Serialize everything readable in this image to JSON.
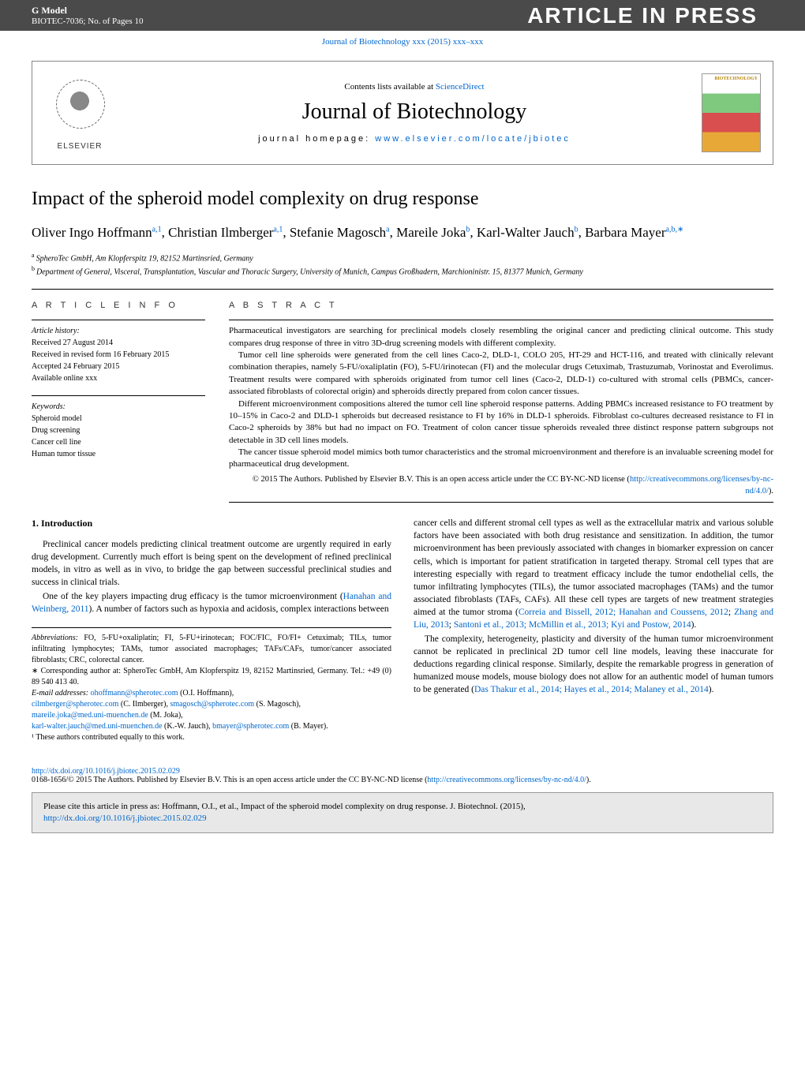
{
  "banner": {
    "gmodel": "G Model",
    "ref": "BIOTEC-7036;   No. of Pages 10",
    "press_label": "ARTICLE IN PRESS"
  },
  "top_doi": "Journal of Biotechnology xxx (2015) xxx–xxx",
  "journal_header": {
    "contents_prefix": "Contents lists available at ",
    "contents_link": "ScienceDirect",
    "journal_name": "Journal of Biotechnology",
    "homepage_prefix": "journal homepage: ",
    "homepage_link": "www.elsevier.com/locate/jbiotec",
    "elsevier": "ELSEVIER",
    "cover_label": "BIOTECHNOLOGY"
  },
  "article": {
    "title": "Impact of the spheroid model complexity on drug response",
    "authors_html": "Oliver Ingo Hoffmann",
    "authors": [
      {
        "name": "Oliver Ingo Hoffmann",
        "sup": "a,1"
      },
      {
        "name": "Christian Ilmberger",
        "sup": "a,1"
      },
      {
        "name": "Stefanie Magosch",
        "sup": "a"
      },
      {
        "name": "Mareile Joka",
        "sup": "b"
      },
      {
        "name": "Karl-Walter Jauch",
        "sup": "b"
      },
      {
        "name": "Barbara Mayer",
        "sup": "a,b,∗"
      }
    ],
    "affiliations": [
      {
        "sup": "a",
        "text": "SpheroTec GmbH, Am Klopferspitz 19, 82152 Martinsried, Germany"
      },
      {
        "sup": "b",
        "text": "Department of General, Visceral, Transplantation, Vascular and Thoracic Surgery, University of Munich, Campus Großhadern, Marchioninistr. 15, 81377 Munich, Germany"
      }
    ]
  },
  "info": {
    "heading": "A R T I C L E   I N F O",
    "history_label": "Article history:",
    "history": [
      "Received 27 August 2014",
      "Received in revised form 16 February 2015",
      "Accepted 24 February 2015",
      "Available online xxx"
    ],
    "keywords_label": "Keywords:",
    "keywords": [
      "Spheroid model",
      "Drug screening",
      "Cancer cell line",
      "Human tumor tissue"
    ]
  },
  "abstract": {
    "heading": "A B S T R A C T",
    "paragraphs": [
      "Pharmaceutical investigators are searching for preclinical models closely resembling the original cancer and predicting clinical outcome. This study compares drug response of three in vitro 3D-drug screening models with different complexity.",
      "Tumor cell line spheroids were generated from the cell lines Caco-2, DLD-1, COLO 205, HT-29 and HCT-116, and treated with clinically relevant combination therapies, namely 5-FU/oxaliplatin (FO), 5-FU/irinotecan (FI) and the molecular drugs Cetuximab, Trastuzumab, Vorinostat and Everolimus. Treatment results were compared with spheroids originated from tumor cell lines (Caco-2, DLD-1) co-cultured with stromal cells (PBMCs, cancer-associated fibroblasts of colorectal origin) and spheroids directly prepared from colon cancer tissues.",
      "Different microenvironment compositions altered the tumor cell line spheroid response patterns. Adding PBMCs increased resistance to FO treatment by 10–15% in Caco-2 and DLD-1 spheroids but decreased resistance to FI by 16% in DLD-1 spheroids. Fibroblast co-cultures decreased resistance to FI in Caco-2 spheroids by 38% but had no impact on FO. Treatment of colon cancer tissue spheroids revealed three distinct response pattern subgroups not detectable in 3D cell lines models.",
      "The cancer tissue spheroid model mimics both tumor characteristics and the stromal microenvironment and therefore is an invaluable screening model for pharmaceutical drug development."
    ],
    "copyright": "© 2015 The Authors. Published by Elsevier B.V. This is an open access article under the CC BY-NC-ND license (",
    "license_link": "http://creativecommons.org/licenses/by-nc-nd/4.0/",
    "copyright_suffix": ")."
  },
  "body": {
    "section1_heading": "1.  Introduction",
    "p1": "Preclinical cancer models predicting clinical treatment outcome are urgently required in early drug development. Currently much effort is being spent on the development of refined preclinical models, in vitro as well as in vivo, to bridge the gap between successful preclinical studies and success in clinical trials.",
    "p2_a": "One of the key players impacting drug efficacy is the tumor microenvironment (",
    "p2_link": "Hanahan and Weinberg, 2011",
    "p2_b": "). A number of factors such as hypoxia and acidosis, complex interactions between",
    "p3_a": "cancer cells and different stromal cell types as well as the extracellular matrix and various soluble factors have been associated with both drug resistance and sensitization. In addition, the tumor microenvironment has been previously associated with changes in biomarker expression on cancer cells, which is important for patient stratification in targeted therapy. Stromal cell types that are interesting especially with regard to treatment efficacy include the tumor endothelial cells, the tumor infiltrating lymphocytes (TILs), the tumor associated macrophages (TAMs) and the tumor associated fibroblasts (TAFs, CAFs). All these cell types are targets of new treatment strategies aimed at the tumor stroma (",
    "p3_link1": "Correia and Bissell, 2012; Hanahan and Coussens, 2012",
    "p3_mid1": "; ",
    "p3_link2": "Zhang and Liu, 2013",
    "p3_mid2": "; ",
    "p3_link3": "Santoni et al., 2013; McMillin et al., 2013; Kyi and Postow, 2014",
    "p3_b": ").",
    "p4_a": "The complexity, heterogeneity, plasticity and diversity of the human tumor microenvironment cannot be replicated in preclinical 2D tumor cell line models, leaving these inaccurate for deductions regarding clinical response. Similarly, despite the remarkable progress in generation of humanized mouse models, mouse biology does not allow for an authentic model of human tumors to be generated (",
    "p4_link": "Das Thakur et al., 2014; Hayes et al., 2014; Malaney et al., 2014",
    "p4_b": ")."
  },
  "footnotes": {
    "abbrev_label": "Abbreviations:",
    "abbrev_text": "   FO, 5-FU+oxaliplatin; FI, 5-FU+irinotecan; FOC/FIC, FO/FI+ Cetuximab; TILs, tumor infiltrating lymphocytes; TAMs, tumor associated macrophages; TAFs/CAFs, tumor/cancer associated fibroblasts; CRC, colorectal cancer.",
    "corr": "∗ Corresponding author at: SpheroTec GmbH, Am Klopferspitz 19, 82152 Martinsried, Germany. Tel.: +49 (0) 89 540 413 40.",
    "emails_label": "E-mail addresses: ",
    "emails": [
      {
        "email": "ohoffmann@spherotec.com",
        "name": " (O.I. Hoffmann),"
      },
      {
        "email": "cilmberger@spherotec.com",
        "name": " (C. Ilmberger), "
      },
      {
        "email": "smagosch@spherotec.com",
        "name": " (S. Magosch), "
      },
      {
        "email": "mareile.joka@med.uni-muenchen.de",
        "name": " (M. Joka),"
      },
      {
        "email": "karl-walter.jauch@med.uni-muenchen.de",
        "name": " (K.-W. Jauch), "
      },
      {
        "email": "bmayer@spherotec.com",
        "name": " (B. Mayer)."
      }
    ],
    "equal": "¹ These authors contributed equally to this work."
  },
  "doi_footer": {
    "doi_link": "http://dx.doi.org/10.1016/j.jbiotec.2015.02.029",
    "issn_line_a": "0168-1656/© 2015 The Authors. Published by Elsevier B.V. This is an open access article under the CC BY-NC-ND license (",
    "issn_link": "http://creativecommons.org/licenses/by-nc-nd/4.0/",
    "issn_line_b": ")."
  },
  "cite_box": {
    "text_a": "Please cite this article in press as: Hoffmann, O.I., et al., Impact of the spheroid model complexity on drug response. J. Biotechnol. (2015), ",
    "link": "http://dx.doi.org/10.1016/j.jbiotec.2015.02.029"
  },
  "colors": {
    "link": "#0066cc",
    "banner_bg": "#4a4a4a",
    "citebox_bg": "#e8e8e8",
    "text": "#000000"
  }
}
